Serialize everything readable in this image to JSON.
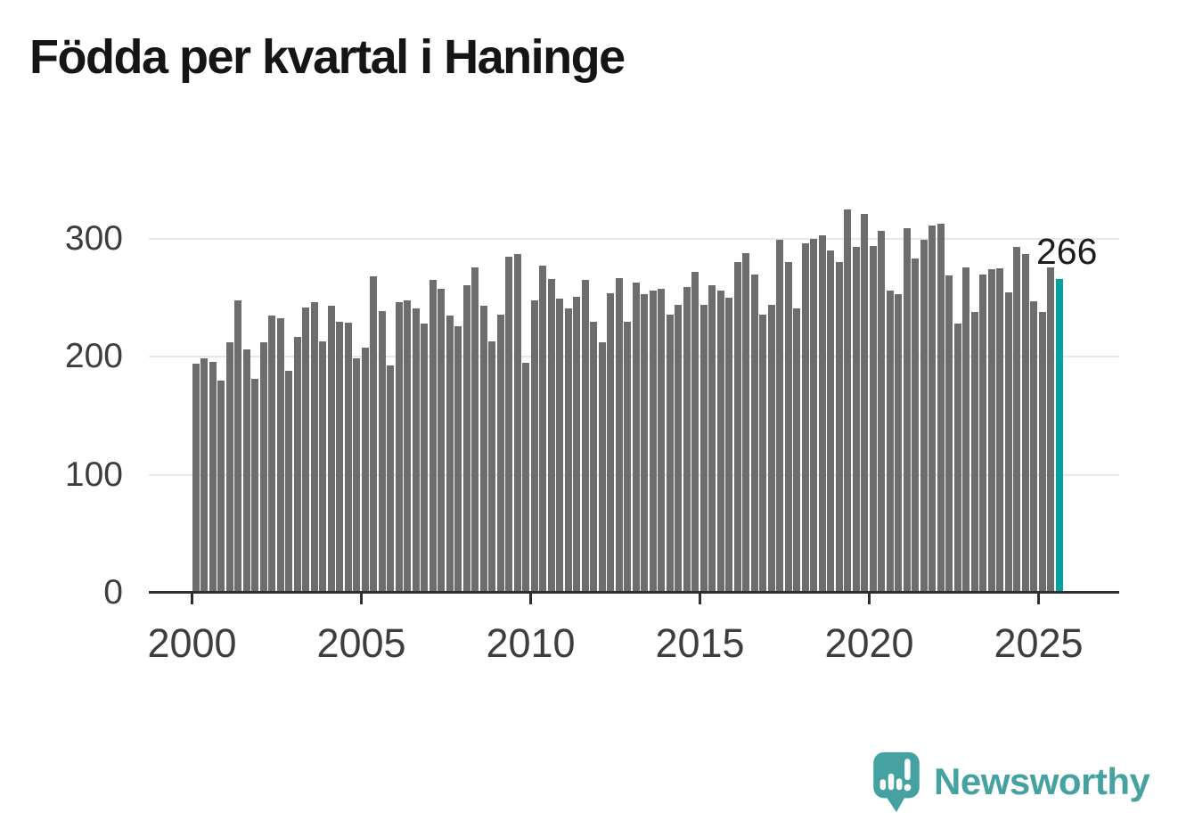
{
  "title": "Födda per kvartal i Haninge",
  "annotation": {
    "last_value_label": "266"
  },
  "branding": {
    "name": "Newsworthy",
    "logo_icon": "newsworthy-speech-bubble-bar-chart-icon",
    "brand_color": "#45a2a0"
  },
  "colors": {
    "bar": "#6d6d6d",
    "highlight": "#00a2a2",
    "gridline": "#e8e8e8",
    "axis": "#2f2f2f",
    "title_text": "#151515",
    "tick_text": "#3d3d3d",
    "annotation_text": "#1c1c1c",
    "background": "#ffffff"
  },
  "chart_data": {
    "type": "bar",
    "title": "Födda per kvartal i Haninge",
    "xlabel": "",
    "ylabel": "",
    "x_start": "2000 Q1",
    "x_end": "2025 Q3",
    "x_unit": "quarter",
    "values": [
      194,
      199,
      196,
      180,
      212,
      248,
      206,
      181,
      212,
      235,
      233,
      188,
      217,
      242,
      246,
      213,
      243,
      230,
      229,
      199,
      208,
      268,
      239,
      193,
      246,
      248,
      241,
      228,
      265,
      258,
      235,
      226,
      261,
      276,
      243,
      213,
      236,
      285,
      287,
      195,
      248,
      277,
      266,
      249,
      241,
      251,
      265,
      230,
      212,
      254,
      267,
      230,
      263,
      253,
      256,
      258,
      236,
      244,
      259,
      272,
      244,
      261,
      256,
      250,
      280,
      288,
      270,
      236,
      244,
      299,
      280,
      241,
      296,
      300,
      303,
      290,
      280,
      325,
      293,
      321,
      294,
      307,
      256,
      253,
      309,
      283,
      299,
      311,
      313,
      269,
      228,
      276,
      238,
      270,
      274,
      275,
      255,
      293,
      287,
      247,
      238,
      276,
      266
    ],
    "highlight_last": true,
    "highlight_value": 266,
    "yticks": [
      0,
      100,
      200,
      300
    ],
    "xticks": [
      "2000",
      "2005",
      "2010",
      "2015",
      "2020",
      "2025"
    ],
    "xtick_years": [
      2000,
      2005,
      2010,
      2015,
      2020,
      2025
    ],
    "ylim": [
      0,
      330
    ],
    "grid": true,
    "legend": false
  }
}
